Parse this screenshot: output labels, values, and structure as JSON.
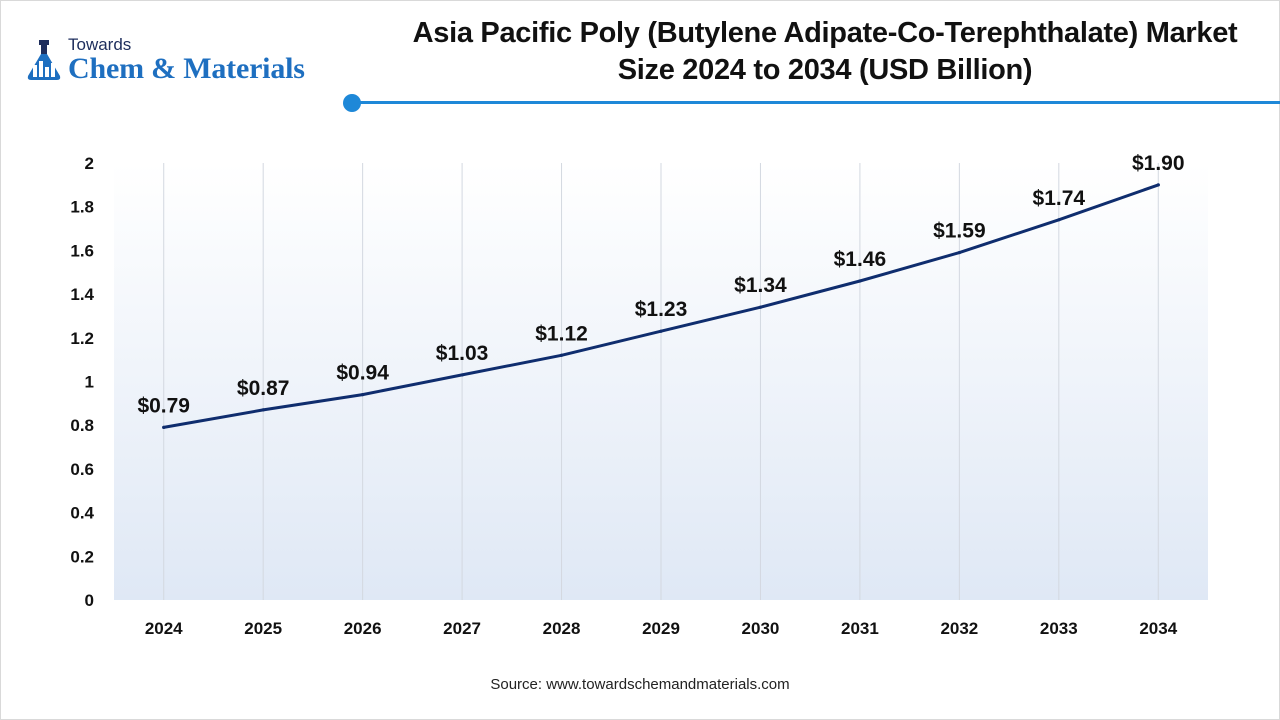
{
  "brand": {
    "top": "Towards",
    "main": "Chem & Materials",
    "logo_icon": "flask-icon"
  },
  "header": {
    "title_line1": "Asia Pacific Poly (Butylene Adipate-Co-Terephthalate) Market",
    "title_line2": "Size 2024 to 2034 (USD Billion)"
  },
  "footer": {
    "source": "Source: www.towardschemandmaterials.com"
  },
  "colors": {
    "line": "#0f2d6e",
    "accent": "#1e88d8",
    "area_top": "#ffffff",
    "area_bottom": "#dfe8f5"
  },
  "chart_data": {
    "type": "line",
    "categories": [
      "2024",
      "2025",
      "2026",
      "2027",
      "2028",
      "2029",
      "2030",
      "2031",
      "2032",
      "2033",
      "2034"
    ],
    "values": [
      0.79,
      0.87,
      0.94,
      1.03,
      1.12,
      1.23,
      1.34,
      1.46,
      1.59,
      1.74,
      1.9
    ],
    "data_labels": [
      "$0.79",
      "$0.87",
      "$0.94",
      "$1.03",
      "$1.12",
      "$1.23",
      "$1.34",
      "$1.46",
      "$1.59",
      "$1.74",
      "$1.90"
    ],
    "y_ticks": [
      "0",
      "0.2",
      "0.4",
      "0.6",
      "0.8",
      "1",
      "1.2",
      "1.4",
      "1.6",
      "1.8",
      "2"
    ],
    "ylim": [
      0,
      2
    ],
    "grid": "vertical",
    "legend": "none"
  }
}
